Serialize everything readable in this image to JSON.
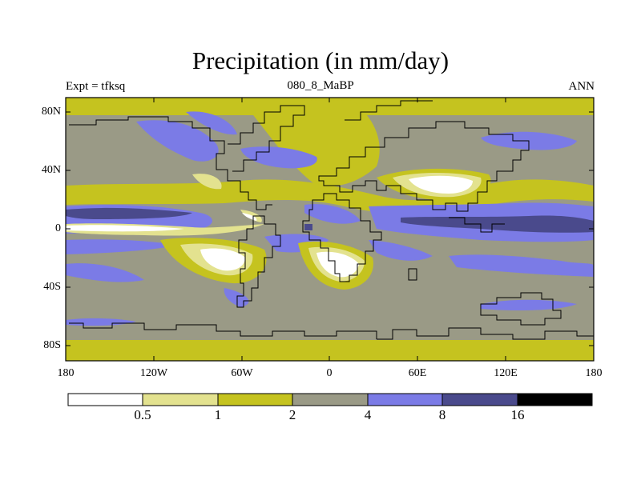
{
  "title": "Precipitation (in mm/day)",
  "subtitle_left": "Expt = tfksq",
  "subtitle_center": "080_8_MaBP",
  "subtitle_right": "ANN",
  "y_axis_labels": [
    "80N",
    "40N",
    "0",
    "40S",
    "80S"
  ],
  "x_axis_labels": [
    "180",
    "120W",
    "60W",
    "0",
    "60E",
    "120E",
    "180"
  ],
  "colorbar": {
    "labels": [
      "0.5",
      "1",
      "2",
      "4",
      "8",
      "16"
    ],
    "colors": [
      "#ffffff",
      "#e3e28f",
      "#c5c31f",
      "#9a9a86",
      "#7b7be6",
      "#4a4a8c",
      "#000000"
    ]
  }
}
